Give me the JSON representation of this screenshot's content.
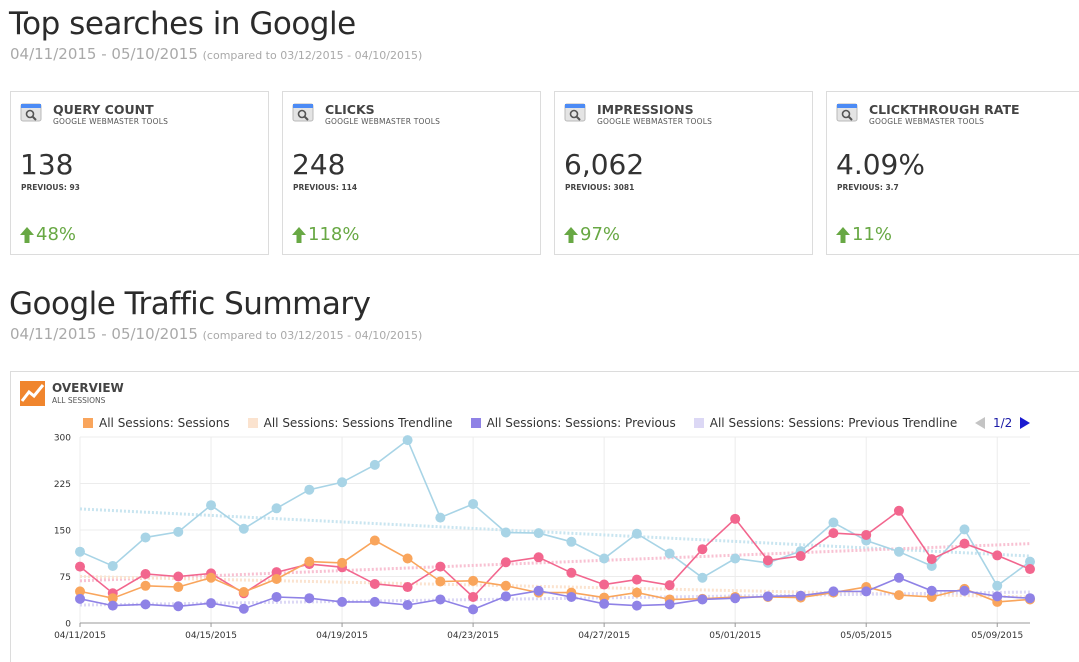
{
  "top": {
    "title": "Top searches in Google",
    "date_range": "04/11/2015 - 05/10/2015",
    "compared": "(compared to 03/12/2015 - 04/10/2015)"
  },
  "cards": [
    {
      "title": "QUERY COUNT",
      "source": "GOOGLE WEBMASTER TOOLS",
      "value": "138",
      "previous": "PREVIOUS: 93",
      "change": "48%"
    },
    {
      "title": "CLICKS",
      "source": "GOOGLE WEBMASTER TOOLS",
      "value": "248",
      "previous": "PREVIOUS: 114",
      "change": "118%"
    },
    {
      "title": "IMPRESSIONS",
      "source": "GOOGLE WEBMASTER TOOLS",
      "value": "6,062",
      "previous": "PREVIOUS: 3081",
      "change": "97%"
    },
    {
      "title": "CLICKTHROUGH RATE",
      "source": "GOOGLE WEBMASTER TOOLS",
      "value": "4.09%",
      "previous": "PREVIOUS: 3.7",
      "change": "11%"
    }
  ],
  "traffic": {
    "title": "Google Traffic Summary",
    "date_range": "04/11/2015 - 05/10/2015",
    "compared": "(compared to 03/12/2015 - 04/10/2015)"
  },
  "overview": {
    "title": "OVERVIEW",
    "subtitle": "ALL SESSIONS",
    "legend": [
      {
        "label": "All Sessions: Sessions",
        "color": "#f9a55c"
      },
      {
        "label": "All Sessions: Sessions Trendline",
        "color": "#fbe3cf"
      },
      {
        "label": "All Sessions: Sessions: Previous",
        "color": "#8f82e6"
      },
      {
        "label": "All Sessions: Sessions: Previous Trendline",
        "color": "#dcd8f5"
      }
    ],
    "pager": "1/2"
  },
  "colors": {
    "accent_green": "#68a844",
    "sessions": "#f9a55c",
    "previous": "#8f82e6",
    "light_blue": "#a8d4e6",
    "pink": "#f2668e"
  },
  "chart_data": {
    "type": "line",
    "ylim": [
      0,
      300
    ],
    "yticks": [
      0,
      75,
      150,
      225,
      300
    ],
    "ytick_labels": [
      "0",
      "75",
      "150",
      "225",
      "300"
    ],
    "xtick_labels": [
      {
        "index": 0,
        "label": "04/11/2015"
      },
      {
        "index": 4,
        "label": "04/15/2015"
      },
      {
        "index": 8,
        "label": "04/19/2015"
      },
      {
        "index": 12,
        "label": "04/23/2015"
      },
      {
        "index": 16,
        "label": "04/27/2015"
      },
      {
        "index": 20,
        "label": "05/01/2015"
      },
      {
        "index": 24,
        "label": "05/05/2015"
      },
      {
        "index": 28,
        "label": "05/09/2015"
      }
    ],
    "series": [
      {
        "color": "#a8d4e6",
        "values": [
          115,
          92,
          138,
          147,
          190,
          152,
          185,
          215,
          227,
          255,
          295,
          170,
          192,
          146,
          145,
          131,
          104,
          144,
          112,
          73,
          104,
          97,
          116,
          162,
          133,
          115,
          92,
          151,
          60,
          99
        ]
      },
      {
        "color": "#f2668e",
        "values": [
          91,
          48,
          79,
          75,
          80,
          48,
          82,
          95,
          90,
          63,
          58,
          91,
          42,
          98,
          106,
          81,
          62,
          70,
          61,
          119,
          168,
          101,
          108,
          145,
          142,
          181,
          103,
          128,
          109,
          87
        ]
      },
      {
        "name": "All Sessions: Sessions",
        "color": "#f9a55c",
        "values": [
          51,
          40,
          60,
          58,
          73,
          50,
          71,
          99,
          97,
          133,
          104,
          67,
          68,
          60,
          49,
          49,
          41,
          49,
          38,
          39,
          42,
          42,
          41,
          49,
          58,
          45,
          42,
          55,
          34,
          38
        ]
      },
      {
        "name": "All Sessions: Sessions: Previous",
        "color": "#8f82e6",
        "values": [
          39,
          28,
          30,
          27,
          32,
          23,
          42,
          40,
          34,
          34,
          29,
          38,
          22,
          43,
          52,
          42,
          31,
          28,
          30,
          38,
          40,
          43,
          44,
          51,
          51,
          73,
          52,
          52,
          43,
          40
        ]
      }
    ],
    "trendlines": [
      {
        "color": "#c9e5f0",
        "start": 184,
        "end": 108
      },
      {
        "color": "#f8c1d2",
        "start": 68,
        "end": 128
      },
      {
        "name": "All Sessions: Sessions Trendline",
        "color": "#fbe3cf",
        "start": 75,
        "end": 42
      },
      {
        "name": "All Sessions: Sessions: Previous Trendline",
        "color": "#dcd8f5",
        "start": 29,
        "end": 50
      }
    ]
  }
}
